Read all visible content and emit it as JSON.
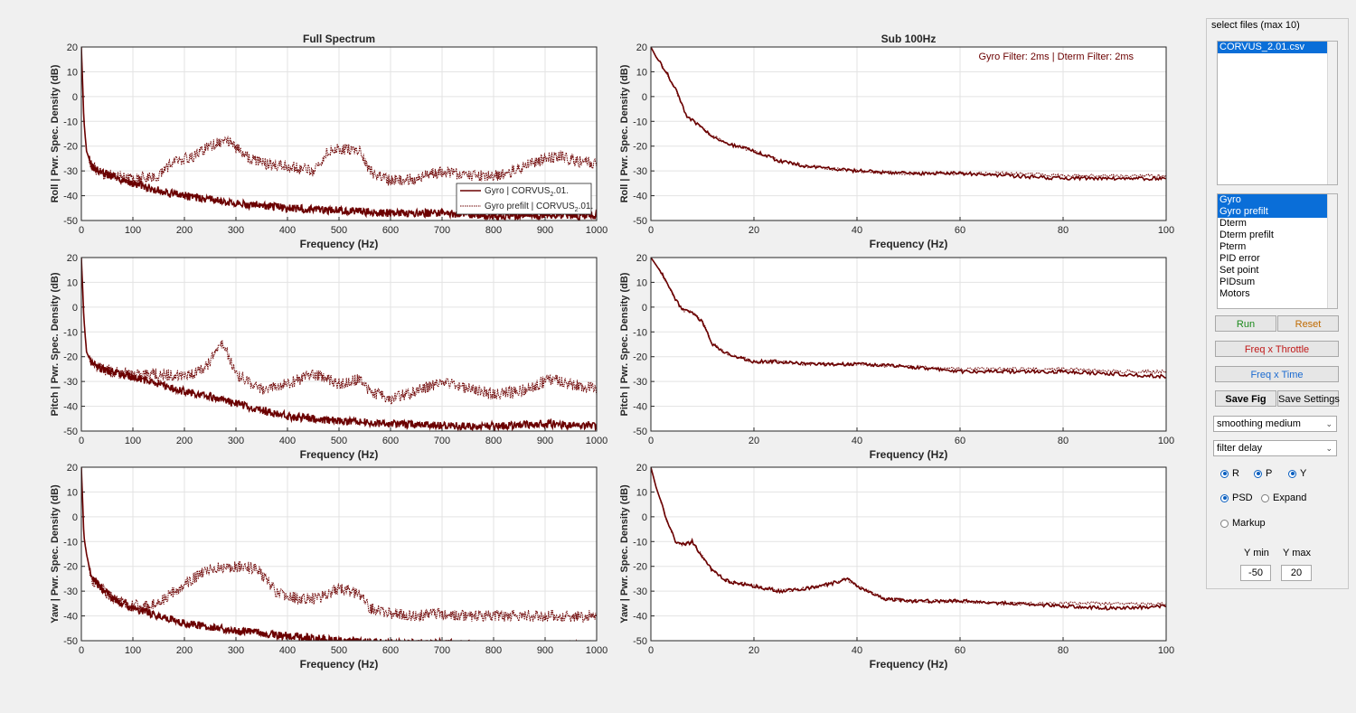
{
  "plots": {
    "title_full": "Full Spectrum",
    "title_sub": "Sub 100Hz",
    "xlabel": "Frequency (Hz)",
    "ylabels": [
      "Roll  |  Pwr. Spec. Density (dB)",
      "Pitch  |  Pwr. Spec. Density (dB)",
      "Yaw  |  Pwr. Spec. Density (dB)"
    ],
    "ylim": [
      -50,
      20
    ],
    "yticks": [
      "20",
      "10",
      "0",
      "-10",
      "-20",
      "-30",
      "-40",
      "-50"
    ],
    "full_xticks": [
      "0",
      "100",
      "200",
      "300",
      "400",
      "500",
      "600",
      "700",
      "800",
      "900",
      "1000"
    ],
    "sub_xticks": [
      "0",
      "20",
      "40",
      "60",
      "80",
      "100"
    ],
    "filter_annotation": "Gyro Filter: 2ms | Dterm Filter: 2ms",
    "line_color": "#6b0000",
    "legend": {
      "gyro_prefix": "Gyro | CORVUS",
      "prefilt_prefix": "Gyro prefilt | CORVUS",
      "subscript": "2",
      "suffix": ".01."
    }
  },
  "chart_data": [
    {
      "type": "line",
      "title": "Full Spectrum",
      "xlabel": "Frequency (Hz)",
      "ylabel": "Roll  |  Pwr. Spec. Density (dB)",
      "xlim": [
        0,
        1000
      ],
      "ylim": [
        -50,
        20
      ],
      "grid": true,
      "legend_placement": "bottom-right",
      "series": [
        {
          "name": "Gyro | CORVUS_2.01.",
          "x": [
            0,
            5,
            10,
            20,
            40,
            60,
            100,
            150,
            200,
            300,
            400,
            500,
            600,
            700,
            800,
            900,
            1000
          ],
          "y": [
            20,
            -10,
            -22,
            -28,
            -31,
            -32,
            -35,
            -38,
            -40,
            -43,
            -45,
            -46,
            -47,
            -47,
            -48,
            -48,
            -48
          ]
        },
        {
          "name": "Gyro prefilt | CORVUS_2.01.",
          "x": [
            0,
            5,
            10,
            20,
            40,
            60,
            100,
            150,
            180,
            220,
            250,
            280,
            320,
            350,
            400,
            450,
            480,
            500,
            520,
            540,
            560,
            600,
            650,
            700,
            750,
            800,
            850,
            900,
            930,
            960,
            1000
          ],
          "y": [
            20,
            -10,
            -22,
            -28,
            -31,
            -32,
            -33,
            -32,
            -26,
            -24,
            -20,
            -17,
            -24,
            -27,
            -28,
            -30,
            -22,
            -21,
            -21,
            -22,
            -30,
            -34,
            -33,
            -30,
            -32,
            -32,
            -29,
            -25,
            -24,
            -26,
            -27
          ]
        }
      ]
    },
    {
      "type": "line",
      "title": "Sub 100Hz",
      "xlabel": "Frequency (Hz)",
      "ylabel": "Roll  |  Pwr. Spec. Density (dB)",
      "xlim": [
        0,
        100
      ],
      "ylim": [
        -50,
        20
      ],
      "grid": true,
      "series": [
        {
          "name": "Gyro",
          "x": [
            0,
            1,
            2,
            3,
            5,
            7,
            9,
            12,
            15,
            20,
            25,
            30,
            40,
            50,
            60,
            70,
            80,
            90,
            100
          ],
          "y": [
            20,
            16,
            13,
            10,
            2,
            -8,
            -11,
            -16,
            -19,
            -22,
            -26,
            -28,
            -30,
            -31,
            -31,
            -32,
            -33,
            -33,
            -33
          ]
        },
        {
          "name": "Gyro prefilt",
          "x": [
            0,
            1,
            2,
            3,
            5,
            7,
            9,
            12,
            15,
            20,
            25,
            30,
            40,
            50,
            60,
            70,
            80,
            90,
            100
          ],
          "y": [
            20,
            16,
            13,
            10,
            2,
            -8,
            -11,
            -16,
            -19,
            -22,
            -26,
            -28,
            -30,
            -31,
            -31,
            -31,
            -32,
            -32,
            -32
          ]
        }
      ]
    },
    {
      "type": "line",
      "xlabel": "Frequency (Hz)",
      "ylabel": "Pitch  |  Pwr. Spec. Density (dB)",
      "xlim": [
        0,
        1000
      ],
      "ylim": [
        -50,
        20
      ],
      "grid": true,
      "series": [
        {
          "name": "Gyro",
          "x": [
            0,
            5,
            10,
            20,
            40,
            60,
            100,
            150,
            200,
            250,
            300,
            400,
            500,
            600,
            700,
            800,
            900,
            1000
          ],
          "y": [
            20,
            -5,
            -18,
            -23,
            -25,
            -26,
            -28,
            -31,
            -34,
            -36,
            -39,
            -44,
            -46,
            -47,
            -48,
            -48,
            -47,
            -48
          ]
        },
        {
          "name": "Gyro prefilt",
          "x": [
            0,
            5,
            10,
            20,
            40,
            60,
            100,
            150,
            200,
            240,
            260,
            275,
            300,
            350,
            400,
            450,
            500,
            540,
            560,
            600,
            650,
            700,
            750,
            800,
            850,
            900,
            920,
            950,
            1000
          ],
          "y": [
            20,
            -5,
            -18,
            -23,
            -25,
            -26,
            -27,
            -27,
            -28,
            -25,
            -18,
            -14,
            -27,
            -33,
            -31,
            -27,
            -31,
            -29,
            -34,
            -37,
            -34,
            -30,
            -33,
            -35,
            -34,
            -30,
            -29,
            -31,
            -33
          ]
        }
      ]
    },
    {
      "type": "line",
      "xlabel": "Frequency (Hz)",
      "ylabel": "Pitch  |  Pwr. Spec. Density (dB)",
      "xlim": [
        0,
        100
      ],
      "ylim": [
        -50,
        20
      ],
      "grid": true,
      "series": [
        {
          "name": "Gyro",
          "x": [
            0,
            2,
            4,
            6,
            8,
            10,
            12,
            15,
            20,
            25,
            30,
            40,
            50,
            60,
            70,
            80,
            90,
            100
          ],
          "y": [
            20,
            14,
            6,
            -1,
            -2,
            -6,
            -15,
            -19,
            -22,
            -22,
            -23,
            -23,
            -24,
            -26,
            -26,
            -26,
            -27,
            -28
          ]
        },
        {
          "name": "Gyro prefilt",
          "x": [
            0,
            2,
            4,
            6,
            8,
            10,
            12,
            15,
            20,
            25,
            30,
            40,
            50,
            60,
            70,
            80,
            90,
            100
          ],
          "y": [
            20,
            14,
            6,
            -1,
            -2,
            -6,
            -15,
            -19,
            -22,
            -22,
            -23,
            -23,
            -24,
            -25,
            -25,
            -25,
            -26,
            -26
          ]
        }
      ]
    },
    {
      "type": "line",
      "xlabel": "Frequency (Hz)",
      "ylabel": "Yaw  |  Pwr. Spec. Density (dB)",
      "xlim": [
        0,
        1000
      ],
      "ylim": [
        -50,
        20
      ],
      "grid": true,
      "series": [
        {
          "name": "Gyro",
          "x": [
            0,
            5,
            10,
            20,
            40,
            60,
            100,
            150,
            200,
            300,
            400,
            500,
            600,
            700,
            800,
            900,
            1000
          ],
          "y": [
            20,
            -8,
            -15,
            -25,
            -29,
            -33,
            -37,
            -40,
            -43,
            -46,
            -48,
            -50,
            -51,
            -51,
            -52,
            -52,
            -52
          ]
        },
        {
          "name": "Gyro prefilt",
          "x": [
            0,
            5,
            10,
            20,
            40,
            60,
            100,
            150,
            200,
            250,
            300,
            340,
            380,
            420,
            460,
            500,
            520,
            540,
            560,
            600,
            650,
            700,
            750,
            800,
            850,
            900,
            950,
            1000
          ],
          "y": [
            20,
            -8,
            -15,
            -25,
            -29,
            -33,
            -36,
            -35,
            -27,
            -21,
            -20,
            -21,
            -31,
            -33,
            -33,
            -29,
            -30,
            -31,
            -37,
            -39,
            -40,
            -39,
            -40,
            -40,
            -40,
            -40,
            -40,
            -40
          ]
        }
      ]
    },
    {
      "type": "line",
      "xlabel": "Frequency (Hz)",
      "ylabel": "Yaw  |  Pwr. Spec. Density (dB)",
      "xlim": [
        0,
        100
      ],
      "ylim": [
        -50,
        20
      ],
      "grid": true,
      "series": [
        {
          "name": "Gyro",
          "x": [
            0,
            1,
            2,
            3,
            5,
            7,
            8,
            10,
            12,
            15,
            20,
            25,
            30,
            35,
            38,
            40,
            45,
            50,
            60,
            70,
            80,
            90,
            100
          ],
          "y": [
            20,
            12,
            6,
            -1,
            -11,
            -11,
            -10,
            -16,
            -22,
            -26,
            -28,
            -30,
            -29,
            -27,
            -25,
            -28,
            -33,
            -34,
            -34,
            -35,
            -36,
            -37,
            -36
          ]
        },
        {
          "name": "Gyro prefilt",
          "x": [
            0,
            1,
            2,
            3,
            5,
            7,
            8,
            10,
            12,
            15,
            20,
            25,
            30,
            35,
            38,
            40,
            45,
            50,
            60,
            70,
            80,
            90,
            100
          ],
          "y": [
            20,
            12,
            6,
            -1,
            -11,
            -11,
            -10,
            -16,
            -22,
            -26,
            -28,
            -30,
            -29,
            -27,
            -25,
            -28,
            -33,
            -34,
            -34,
            -35,
            -35,
            -35,
            -35
          ]
        }
      ]
    }
  ],
  "panel": {
    "title": "select files (max 10)",
    "files": [
      {
        "label": "CORVUS_2.01.csv",
        "selected": true
      }
    ],
    "signals": [
      {
        "label": "Gyro",
        "selected": true
      },
      {
        "label": "Gyro prefilt",
        "selected": true
      },
      {
        "label": "Dterm",
        "selected": false
      },
      {
        "label": "Dterm prefilt",
        "selected": false
      },
      {
        "label": "Pterm",
        "selected": false
      },
      {
        "label": "PID error",
        "selected": false
      },
      {
        "label": "Set point",
        "selected": false
      },
      {
        "label": "PIDsum",
        "selected": false
      },
      {
        "label": "Motors",
        "selected": false
      }
    ],
    "run_label": "Run",
    "reset_label": "Reset",
    "freq_throttle_label": "Freq x Throttle",
    "freq_time_label": "Freq x Time",
    "save_fig_label": "Save Fig",
    "save_settings_label": "Save Settings",
    "smoothing_value": "smoothing medium",
    "delay_value": "filter delay",
    "radio_r": "R",
    "radio_p": "P",
    "radio_y": "Y",
    "radio_psd": "PSD",
    "radio_expand": "Expand",
    "radio_markup": "Markup",
    "ymin_label": "Y min",
    "ymax_label": "Y max",
    "ymin_value": "-50",
    "ymax_value": "20",
    "colors": {
      "run": "#1a8a1a",
      "reset": "#c06a00",
      "freq_throttle": "#c01818",
      "freq_time": "#1a6ad0"
    }
  }
}
